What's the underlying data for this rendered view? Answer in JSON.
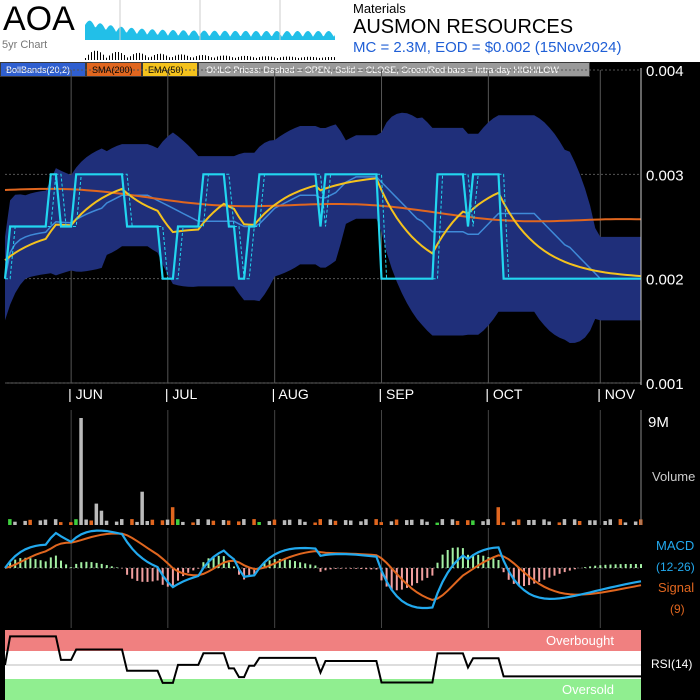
{
  "header": {
    "ticker": "AOA",
    "spark_label": "5yr Chart",
    "sector": "Materials",
    "company": "AUSMON RESOURCES",
    "mc_line": "MC = 2.3M, EOD = $0.002 (15Nov2024)"
  },
  "legend": {
    "boll": "BollBands(20,2)",
    "sma": "SMA(200)",
    "ema": "EMA(50)",
    "ohlc": "OHLC Prices: Dashed = OPEN, Solid = CLOSE, Green/Red bars = Intra-day HIGH/LOW"
  },
  "colors": {
    "boll_band": "#1f2f7a",
    "close": "#22d6f0",
    "sma": "#e0661f",
    "ema": "#f4c21d",
    "volume_up": "#3fcf3f",
    "volume_down": "#e0661f",
    "volume_neutral": "#bbbbbb",
    "macd": "#22a9ee",
    "signal": "#e0661f",
    "hist_pos": "#a4f0a4",
    "hist_neg": "#f2a0a0",
    "overbought": "#f08080",
    "oversold": "#90ee90"
  },
  "panels": {
    "volume_label": "Volume",
    "volume_max": "9M",
    "macd_label": "MACD",
    "macd_params": "(12-26)",
    "signal_label": "Signal",
    "signal_params": "(9)",
    "overbought_label": "Overbought",
    "oversold_label": "Oversold",
    "rsi_label": "RSI(14)"
  },
  "chart_data": {
    "type": "line",
    "y_ticks": [
      "0.004",
      "0.003",
      "0.002",
      "0.001"
    ],
    "y_tick_values": [
      0.004,
      0.003,
      0.002,
      0.001
    ],
    "ylim": [
      0.001,
      0.004
    ],
    "months": [
      "| JUN",
      "| JUL",
      "| AUG",
      "| SEP",
      "| OCT",
      "| NOV"
    ],
    "month_idx": [
      13,
      32,
      53,
      74,
      95,
      117
    ],
    "n": 126,
    "close": [
      0.002,
      0.0025,
      0.0025,
      0.0025,
      0.0025,
      0.0025,
      0.0025,
      0.0025,
      0.0025,
      0.003,
      0.003,
      0.0025,
      0.0025,
      0.0025,
      0.003,
      0.003,
      0.003,
      0.003,
      0.003,
      0.003,
      0.003,
      0.003,
      0.003,
      0.003,
      0.0025,
      0.0025,
      0.0025,
      0.0025,
      0.0025,
      0.0025,
      0.0025,
      0.002,
      0.002,
      0.002,
      0.0025,
      0.0025,
      0.0025,
      0.0025,
      0.0025,
      0.003,
      0.003,
      0.003,
      0.003,
      0.003,
      0.0025,
      0.0025,
      0.002,
      0.002,
      0.0025,
      0.0025,
      0.003,
      0.003,
      0.003,
      0.003,
      0.003,
      0.003,
      0.003,
      0.003,
      0.003,
      0.003,
      0.003,
      0.003,
      0.0025,
      0.003,
      0.003,
      0.003,
      0.003,
      0.003,
      0.003,
      0.003,
      0.003,
      0.003,
      0.003,
      0.003,
      0.002,
      0.002,
      0.002,
      0.002,
      0.002,
      0.002,
      0.002,
      0.002,
      0.002,
      0.002,
      0.002,
      0.003,
      0.003,
      0.003,
      0.003,
      0.003,
      0.003,
      0.0025,
      0.003,
      0.003,
      0.003,
      0.003,
      0.003,
      0.003,
      0.002,
      0.002,
      0.002,
      0.002,
      0.002,
      0.002,
      0.002,
      0.002,
      0.002,
      0.002,
      0.002,
      0.002,
      0.002,
      0.002,
      0.002,
      0.002,
      0.002,
      0.002,
      0.002,
      0.002,
      0.002,
      0.002,
      0.002,
      0.002,
      0.002,
      0.002,
      0.002,
      0.002
    ],
    "boll_upper_start": [
      0.003,
      0.0031,
      0.0032,
      0.0033,
      0.0034,
      0.0035,
      0.0035,
      0.0035,
      0.0034,
      0.0034
    ],
    "sma_start": 0.00285,
    "sma_end": 0.00253,
    "ema_start": 0.0022,
    "ema_end": 0.00222,
    "volume_max_value": 9000000,
    "xlabel": "",
    "ylabel": ""
  }
}
